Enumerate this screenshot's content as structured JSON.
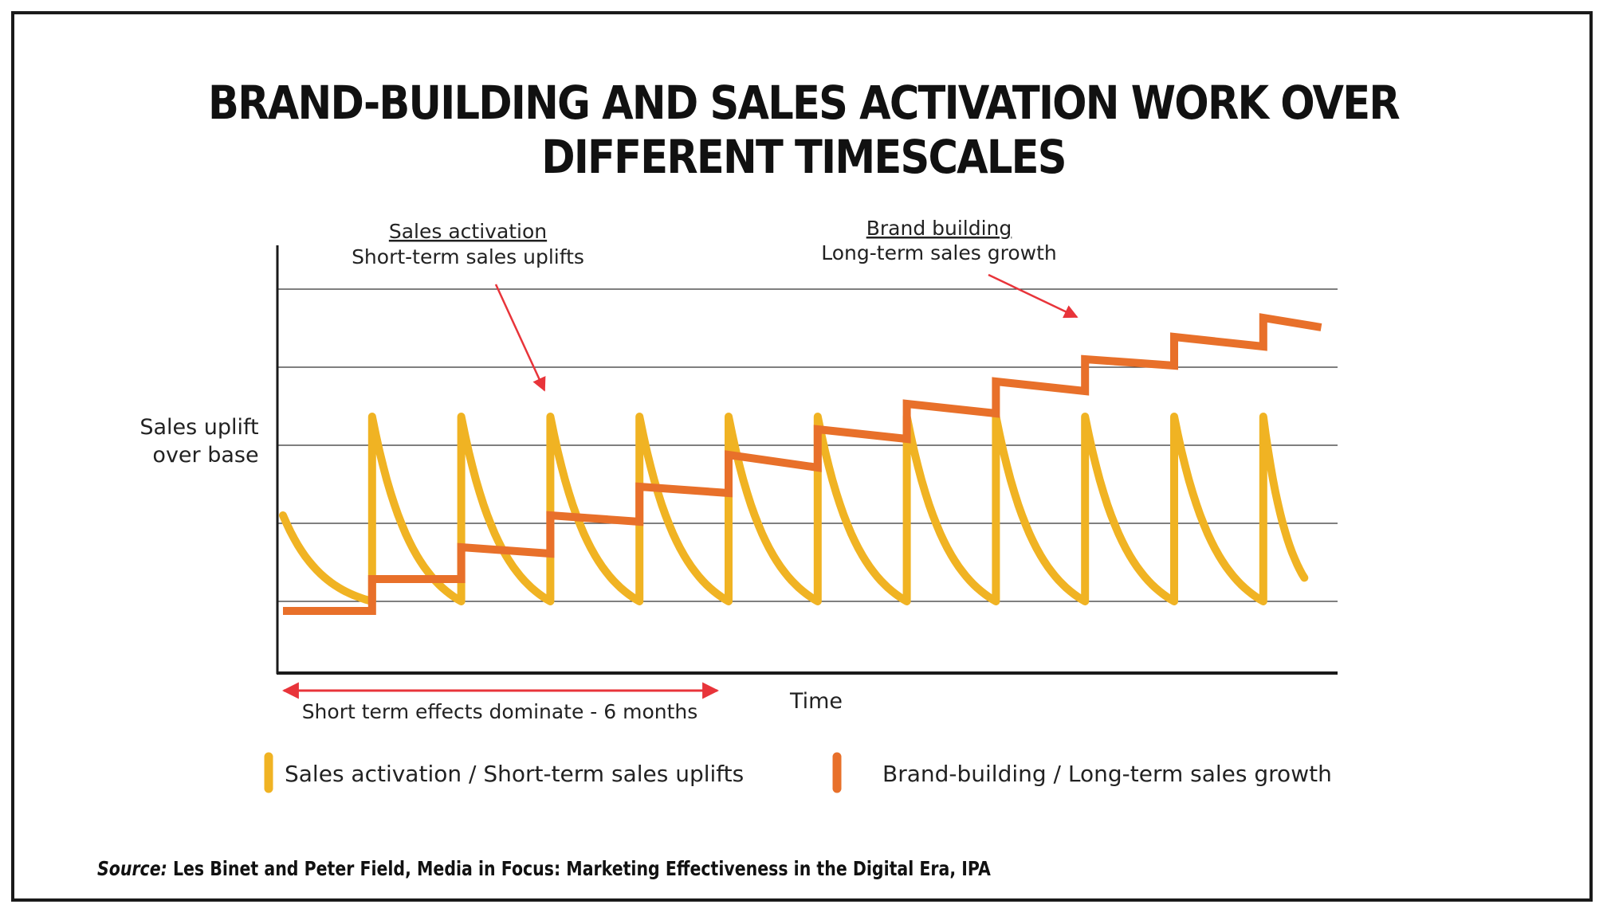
{
  "title": "BRAND-BUILDING AND SALES ACTIVATION WORK OVER DIFFERENT TIMESCALES",
  "source": {
    "label": "Source:",
    "text": "Les Binet and Peter Field, Media in Focus: Marketing Effectiveness in the Digital Era, IPA"
  },
  "chart_data": {
    "type": "line",
    "xlabel": "Time",
    "ylabel_lines": [
      "Sales uplift",
      "over base"
    ],
    "grid": true,
    "series": [
      {
        "name": "Sales activation / Short-term sales uplifts",
        "color": "#f0b323",
        "pattern": "sawtooth",
        "period": 1,
        "peak": 2.9,
        "trough": 0,
        "first_peak_x": 1,
        "first_value": 1.35,
        "cycles": 11
      },
      {
        "name": "Brand-building / Long-term sales growth",
        "color": "#e8702a",
        "pattern": "staircase",
        "points": [
          [
            0,
            -0.15
          ],
          [
            1,
            -0.15
          ],
          [
            1,
            0.35
          ],
          [
            2,
            0.35
          ],
          [
            2,
            0.85
          ],
          [
            3,
            0.75
          ],
          [
            3,
            1.35
          ],
          [
            4,
            1.25
          ],
          [
            4,
            1.8
          ],
          [
            5,
            1.7
          ],
          [
            5,
            2.3
          ],
          [
            6,
            2.1
          ],
          [
            6,
            2.7
          ],
          [
            7,
            2.55
          ],
          [
            7,
            3.1
          ],
          [
            8,
            2.95
          ],
          [
            8,
            3.45
          ],
          [
            9,
            3.3
          ],
          [
            9,
            3.8
          ],
          [
            10,
            3.7
          ],
          [
            10,
            4.15
          ],
          [
            11,
            4.0
          ],
          [
            11,
            4.45
          ],
          [
            11.65,
            4.3
          ]
        ]
      }
    ],
    "annotations": {
      "sales_activation": {
        "heading": "Sales activation",
        "text": "Short-term sales uplifts"
      },
      "brand_building": {
        "heading": "Brand building",
        "text": "Long-term sales growth"
      },
      "short_term": {
        "text": "Short term effects dominate - 6 months"
      }
    },
    "legend": {
      "position": "bottom",
      "items": [
        {
          "label": "Sales activation / Short-term sales uplifts",
          "color": "#f0b323"
        },
        {
          "label": "Brand-building / Long-term sales growth",
          "color": "#e8702a"
        }
      ]
    }
  }
}
